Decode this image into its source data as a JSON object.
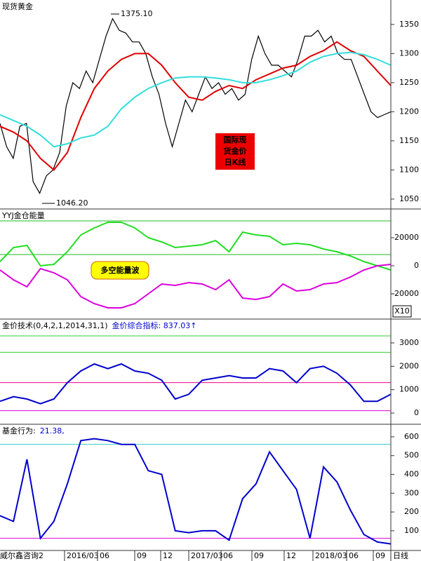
{
  "chart_data": [
    {
      "type": "line",
      "title": "现货黄金",
      "series": [
        {
          "name": "price",
          "color": "#000000",
          "values": [
            1180,
            1140,
            1120,
            1175,
            1180,
            1080,
            1060,
            1090,
            1100,
            1130,
            1210,
            1250,
            1240,
            1270,
            1250,
            1290,
            1330,
            1360,
            1340,
            1335,
            1320,
            1320,
            1300,
            1260,
            1230,
            1180,
            1140,
            1180,
            1220,
            1200,
            1230,
            1260,
            1240,
            1250,
            1230,
            1240,
            1220,
            1230,
            1290,
            1330,
            1300,
            1280,
            1280,
            1270,
            1260,
            1290,
            1330,
            1330,
            1340,
            1320,
            1330,
            1300,
            1290,
            1290,
            1260,
            1230,
            1200,
            1190,
            1195,
            1200
          ]
        },
        {
          "name": "ma-red",
          "color": "#e00000",
          "values": [
            1175,
            1165,
            1150,
            1120,
            1100,
            1130,
            1190,
            1240,
            1270,
            1290,
            1300,
            1300,
            1280,
            1250,
            1225,
            1220,
            1235,
            1245,
            1240,
            1255,
            1265,
            1275,
            1280,
            1295,
            1305,
            1320,
            1305,
            1295,
            1270,
            1245
          ]
        },
        {
          "name": "ma-cyan",
          "color": "#33dddd",
          "values": [
            1195,
            1185,
            1175,
            1160,
            1140,
            1145,
            1155,
            1160,
            1175,
            1205,
            1225,
            1240,
            1250,
            1258,
            1260,
            1260,
            1258,
            1255,
            1250,
            1250,
            1255,
            1262,
            1270,
            1285,
            1295,
            1300,
            1302,
            1298,
            1290,
            1280
          ]
        }
      ],
      "ylim": [
        1033,
        1392
      ],
      "yticks": [
        1050,
        1100,
        1150,
        1200,
        1250,
        1300,
        1350
      ],
      "annotations": [
        "1375.10",
        "1046.20"
      ],
      "badge": [
        "国际现",
        "货金价",
        "日K线"
      ]
    },
    {
      "type": "line",
      "title": "YYJ金仓能量",
      "series": [
        {
          "name": "long",
          "color": "#22dd22",
          "values": [
            3000,
            13000,
            14500,
            0,
            1000,
            10000,
            22000,
            27000,
            31000,
            31000,
            27000,
            20000,
            17000,
            13000,
            14000,
            15000,
            18000,
            10000,
            24000,
            22000,
            21000,
            15000,
            16000,
            15000,
            12000,
            10000,
            7000,
            3000,
            0,
            -3000
          ]
        },
        {
          "name": "short",
          "color": "#dd00dd",
          "values": [
            -3000,
            -10000,
            -15000,
            -2000,
            -5000,
            -10000,
            -22000,
            -27000,
            -30000,
            -30000,
            -27000,
            -20000,
            -13000,
            -14000,
            -12000,
            -13000,
            -17000,
            -10000,
            -23000,
            -24000,
            -22000,
            -13000,
            -18000,
            -17000,
            -13000,
            -12000,
            -8000,
            -3000,
            0,
            1000
          ]
        }
      ],
      "ref_lines": [
        {
          "value": 32000,
          "color": "#22bb22"
        },
        {
          "value": 8000,
          "color": "#22bb22"
        }
      ],
      "ylim": [
        -38000,
        40500
      ],
      "yticks": [
        20000,
        0,
        -20000
      ],
      "badge": "多空能量波",
      "unit_label": "X10"
    },
    {
      "type": "line",
      "title": "金价技术(0,4,2,1,2014,31,1)",
      "subtitle": "金价综合指标: 837.03↑",
      "series": [
        {
          "name": "index",
          "color": "#0000cc",
          "values": [
            500,
            700,
            600,
            400,
            600,
            1300,
            1800,
            2100,
            1900,
            2100,
            1800,
            1700,
            1400,
            600,
            800,
            1400,
            1500,
            1600,
            1500,
            1500,
            1900,
            1800,
            1300,
            1900,
            2000,
            1700,
            1200,
            500,
            500,
            800
          ]
        }
      ],
      "ref_lines": [
        {
          "value": 3300,
          "color": "#33cc33"
        },
        {
          "value": 2600,
          "color": "#33cc33"
        },
        {
          "value": 1300,
          "color": "#ee0088"
        },
        {
          "value": 100,
          "color": "#dd00dd"
        }
      ],
      "ylim": [
        -480,
        4020
      ],
      "yticks": [
        3000,
        2000,
        1000,
        0
      ]
    },
    {
      "type": "line",
      "title": "基金行为:",
      "subtitle": "21.38,",
      "series": [
        {
          "name": "fund",
          "color": "#0000cc",
          "values": [
            180,
            150,
            480,
            60,
            150,
            350,
            580,
            590,
            580,
            560,
            560,
            420,
            400,
            100,
            90,
            100,
            100,
            50,
            270,
            350,
            520,
            420,
            320,
            60,
            440,
            360,
            210,
            80,
            40,
            30
          ]
        }
      ],
      "ref_lines": [
        {
          "value": 560,
          "color": "#33cccc"
        },
        {
          "value": 60,
          "color": "#dd00dd"
        }
      ],
      "ylim": [
        -5,
        667
      ],
      "yticks": [
        600,
        500,
        400,
        300,
        200,
        100
      ],
      "x_labels": [
        "威尔鑫咨询2",
        "2016/03",
        "06",
        "09",
        "12",
        "2017/03",
        "06",
        "09",
        "12",
        "2018/03",
        "06",
        "09",
        "日线"
      ]
    }
  ]
}
